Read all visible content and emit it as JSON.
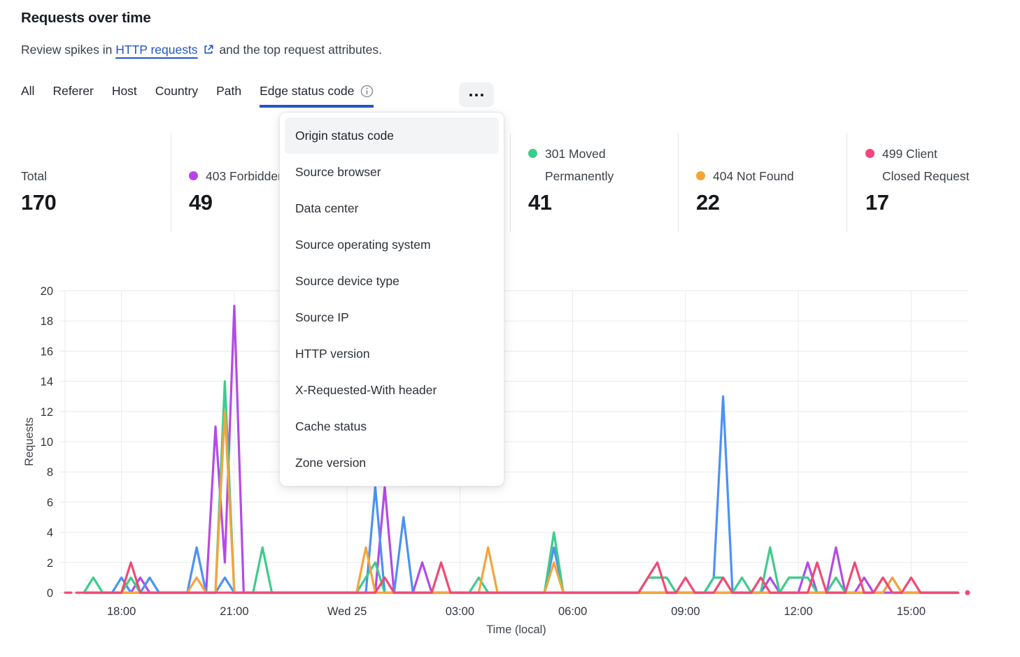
{
  "header": {
    "title": "Requests over time",
    "subtitle_prefix": "Review spikes in",
    "subtitle_link": "HTTP requests",
    "subtitle_suffix": "and the top request attributes.",
    "link_color": "#2456c4"
  },
  "icons": {
    "subtitle_link": "external-link-icon",
    "selected_tab": "info-circle-icon",
    "more_tabs": "ellipsis-icon"
  },
  "tabs": {
    "items": [
      {
        "label": "All",
        "selected": false
      },
      {
        "label": "Referer",
        "selected": false
      },
      {
        "label": "Host",
        "selected": false
      },
      {
        "label": "Country",
        "selected": false
      },
      {
        "label": "Path",
        "selected": false
      },
      {
        "label": "Edge status code",
        "selected": true
      }
    ],
    "underline_color": "#2456c4"
  },
  "menu": {
    "highlighted": "Origin status code",
    "items": [
      "Origin status code",
      "Source browser",
      "Data center",
      "Source operating system",
      "Source device type",
      "Source IP",
      "HTTP version",
      "X-Requested-With header",
      "Cache status",
      "Zone version"
    ]
  },
  "stats": [
    {
      "label": "Total",
      "value": "170",
      "color": null
    },
    {
      "label": "403 Forbidden",
      "value": "49",
      "color": "#b545ea"
    },
    {
      "label": "301 Moved Permanently",
      "value": "41",
      "color": "#3bcd8a"
    },
    {
      "label": "404 Not Found",
      "value": "22",
      "color": "#f5a332"
    },
    {
      "label": "499 Client Closed Request",
      "value": "17",
      "color": "#f3457a"
    }
  ],
  "chart_data": {
    "type": "line",
    "title": "Requests over time",
    "xlabel": "Time (local)",
    "ylabel": "Requests",
    "ylim": [
      0,
      20
    ],
    "y_ticks": [
      0,
      2,
      4,
      6,
      8,
      10,
      12,
      14,
      16,
      18,
      20
    ],
    "grid": true,
    "grid_color": "#e8eaed",
    "x_interval_minutes": 15,
    "x_tick_indices": [
      6,
      18,
      30,
      42,
      54,
      66,
      78,
      90
    ],
    "x_tick_labels": [
      "18:00",
      "21:00",
      "Wed 25",
      "03:00",
      "06:00",
      "09:00",
      "12:00",
      "15:00"
    ],
    "legend_position": "top (stat cards)",
    "series": [
      {
        "name": "403 Forbidden",
        "color": "#b44ae8",
        "values": [
          0,
          0,
          0,
          0,
          0,
          0,
          0,
          0,
          1,
          0,
          0,
          0,
          0,
          0,
          0,
          0,
          11,
          2,
          19,
          0,
          0,
          0,
          0,
          0,
          0,
          0,
          0,
          0,
          0,
          0,
          0,
          0,
          0,
          0,
          7,
          0,
          0,
          0,
          2,
          0,
          0,
          0,
          0,
          0,
          0,
          0,
          0,
          0,
          0,
          0,
          0,
          0,
          0,
          0,
          0,
          0,
          0,
          0,
          0,
          0,
          0,
          0,
          0,
          0,
          0,
          0,
          0,
          0,
          0,
          0,
          0,
          0,
          0,
          0,
          0,
          1,
          0,
          0,
          0,
          2,
          0,
          0,
          3,
          0,
          0,
          1,
          0,
          0,
          0,
          0,
          0,
          0,
          0,
          0,
          0,
          0,
          0
        ]
      },
      {
        "name": "",
        "color": "#4b92f4",
        "values": [
          0,
          0,
          0,
          0,
          0,
          0,
          1,
          0,
          0,
          1,
          0,
          0,
          0,
          0,
          3,
          0,
          0,
          1,
          0,
          0,
          0,
          0,
          0,
          0,
          0,
          0,
          0,
          0,
          0,
          0,
          0,
          0,
          0,
          7,
          0,
          0,
          5,
          0,
          0,
          0,
          0,
          0,
          0,
          0,
          0,
          0,
          0,
          0,
          0,
          0,
          0,
          0,
          3,
          0,
          0,
          0,
          0,
          0,
          0,
          0,
          0,
          0,
          0,
          0,
          0,
          0,
          0,
          0,
          0,
          1,
          13,
          0,
          0,
          0,
          0,
          0,
          0,
          0,
          0,
          0,
          0,
          0,
          0,
          0,
          0,
          0,
          0,
          0,
          1,
          0,
          0,
          0,
          0,
          0,
          0,
          0,
          0
        ]
      },
      {
        "name": "301 Moved Permanently",
        "color": "#3ecb8c",
        "values": [
          0,
          0,
          0,
          1,
          0,
          0,
          0,
          1,
          0,
          0,
          0,
          0,
          0,
          0,
          0,
          0,
          0,
          14,
          0,
          0,
          0,
          3,
          0,
          0,
          0,
          0,
          0,
          0,
          0,
          0,
          0,
          0,
          1,
          2,
          0,
          0,
          0,
          0,
          0,
          0,
          0,
          0,
          0,
          0,
          1,
          0,
          0,
          0,
          0,
          0,
          0,
          0,
          4,
          0,
          0,
          0,
          0,
          0,
          0,
          0,
          0,
          0,
          1,
          1,
          1,
          0,
          0,
          0,
          0,
          1,
          1,
          0,
          1,
          0,
          0,
          3,
          0,
          1,
          1,
          1,
          0,
          0,
          1,
          0,
          0,
          0,
          0,
          1,
          0,
          0,
          0,
          0,
          0,
          0,
          0,
          0,
          0
        ]
      },
      {
        "name": "404 Not Found",
        "color": "#f5a43b",
        "values": [
          0,
          0,
          0,
          0,
          0,
          0,
          0,
          0,
          0,
          0,
          0,
          0,
          0,
          0,
          1,
          0,
          0,
          12,
          0,
          0,
          0,
          0,
          0,
          0,
          0,
          0,
          0,
          0,
          0,
          0,
          0,
          0,
          3,
          0,
          0,
          0,
          0,
          0,
          0,
          0,
          0,
          0,
          0,
          0,
          0,
          3,
          0,
          0,
          0,
          0,
          0,
          0,
          2,
          0,
          0,
          0,
          0,
          0,
          0,
          0,
          0,
          0,
          0,
          0,
          0,
          0,
          0,
          0,
          0,
          0,
          0,
          0,
          0,
          0,
          0,
          0,
          0,
          0,
          0,
          0,
          0,
          0,
          0,
          0,
          0,
          0,
          0,
          0,
          1,
          0,
          0,
          0,
          0,
          0,
          0,
          0,
          0
        ]
      },
      {
        "name": "499 Client Closed Request",
        "color": "#f14a74",
        "dashed_start": true,
        "end_dot": true,
        "values": [
          0,
          0,
          0,
          0,
          0,
          0,
          0,
          2,
          0,
          0,
          0,
          0,
          0,
          0,
          0,
          0,
          0,
          0,
          0,
          0,
          0,
          0,
          0,
          0,
          0,
          0,
          0,
          0,
          0,
          0,
          0,
          0,
          0,
          0,
          1,
          0,
          0,
          0,
          0,
          0,
          2,
          0,
          0,
          0,
          0,
          0,
          0,
          0,
          0,
          0,
          0,
          0,
          0,
          0,
          0,
          0,
          0,
          0,
          0,
          0,
          0,
          0,
          1,
          2,
          0,
          0,
          1,
          0,
          0,
          0,
          1,
          0,
          0,
          0,
          1,
          0,
          0,
          0,
          0,
          0,
          2,
          0,
          0,
          0,
          2,
          0,
          0,
          1,
          0,
          0,
          1,
          0,
          0,
          0,
          0,
          0,
          0
        ]
      }
    ]
  }
}
